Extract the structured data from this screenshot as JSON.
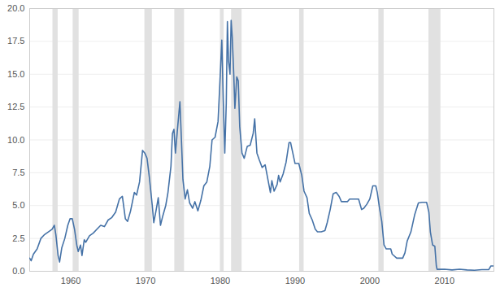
{
  "chart_data": {
    "type": "line",
    "color": "#4572a7",
    "grid": true,
    "xlim": [
      1954.5,
      2016.6
    ],
    "xticks": [
      1960,
      1970,
      1980,
      1990,
      2000,
      2010
    ],
    "ylim": [
      0,
      20
    ],
    "yticks": [
      {
        "value": 0,
        "label": "0.0"
      },
      {
        "value": 2.5,
        "label": "2.5"
      },
      {
        "value": 5,
        "label": "5.0"
      },
      {
        "value": 7.5,
        "label": "7.5"
      },
      {
        "value": 10,
        "label": "10.0"
      },
      {
        "value": 12.5,
        "label": "12.5"
      },
      {
        "value": 15,
        "label": "15.0"
      },
      {
        "value": 17.5,
        "label": "17.5"
      },
      {
        "value": 20,
        "label": "20.0"
      }
    ],
    "recessions": [
      [
        1957.6,
        1958.3
      ],
      [
        1960.3,
        1961.1
      ],
      [
        1969.9,
        1970.9
      ],
      [
        1973.9,
        1975.2
      ],
      [
        1980.0,
        1980.5
      ],
      [
        1981.5,
        1982.9
      ],
      [
        1990.6,
        1991.2
      ],
      [
        2001.2,
        2001.9
      ],
      [
        2007.9,
        2009.5
      ]
    ],
    "x": [
      1954.5,
      1954.7,
      1955.0,
      1955.5,
      1956.0,
      1956.5,
      1957.0,
      1957.5,
      1957.8,
      1958.0,
      1958.3,
      1958.5,
      1958.8,
      1959.2,
      1959.6,
      1959.9,
      1960.2,
      1960.5,
      1960.8,
      1961.0,
      1961.3,
      1961.5,
      1961.8,
      1962.0,
      1962.5,
      1963.0,
      1963.5,
      1964.0,
      1964.5,
      1965.0,
      1965.5,
      1966.0,
      1966.5,
      1966.9,
      1967.3,
      1967.6,
      1968.0,
      1968.5,
      1968.8,
      1969.2,
      1969.6,
      1969.9,
      1970.2,
      1970.5,
      1970.9,
      1971.1,
      1971.4,
      1971.7,
      1972.0,
      1972.3,
      1972.7,
      1973.0,
      1973.4,
      1973.6,
      1973.8,
      1974.0,
      1974.3,
      1974.6,
      1974.8,
      1975.0,
      1975.3,
      1975.6,
      1975.9,
      1976.3,
      1976.6,
      1977.0,
      1977.4,
      1977.8,
      1978.2,
      1978.6,
      1978.9,
      1979.3,
      1979.7,
      1979.9,
      1980.2,
      1980.4,
      1980.6,
      1980.8,
      1980.95,
      1981.1,
      1981.3,
      1981.45,
      1981.6,
      1981.8,
      1981.95,
      1982.2,
      1982.4,
      1982.6,
      1982.9,
      1983.2,
      1983.6,
      1984.0,
      1984.4,
      1984.6,
      1984.9,
      1985.2,
      1985.6,
      1986.0,
      1986.4,
      1986.7,
      1986.9,
      1987.2,
      1987.6,
      1987.8,
      1988.0,
      1988.4,
      1988.8,
      1989.2,
      1989.4,
      1989.7,
      1990.0,
      1990.5,
      1990.9,
      1991.2,
      1991.6,
      1991.9,
      1992.3,
      1992.7,
      1993.0,
      1993.5,
      1994.0,
      1994.3,
      1994.7,
      1995.1,
      1995.5,
      1995.9,
      1996.2,
      1996.6,
      1997.0,
      1997.3,
      1997.9,
      1998.5,
      1998.9,
      1999.2,
      1999.6,
      2000.0,
      2000.4,
      2000.8,
      2001.0,
      2001.3,
      2001.6,
      2001.9,
      2002.2,
      2002.8,
      2003.0,
      2003.6,
      2004.4,
      2004.7,
      2005.0,
      2005.5,
      2006.0,
      2006.5,
      2007.0,
      2007.6,
      2007.9,
      2008.1,
      2008.4,
      2008.7,
      2008.9,
      2009.0,
      2010.0,
      2011.0,
      2012.0,
      2013.0,
      2014.0,
      2015.0,
      2015.9,
      2016.2,
      2016.6
    ],
    "values": [
      1.0,
      0.8,
      1.3,
      1.7,
      2.5,
      2.8,
      3.0,
      3.2,
      3.5,
      2.8,
      1.2,
      0.7,
      1.8,
      2.5,
      3.5,
      4.0,
      4.0,
      3.2,
      2.0,
      1.5,
      2.0,
      1.2,
      2.4,
      2.2,
      2.7,
      2.9,
      3.2,
      3.5,
      3.4,
      3.9,
      4.1,
      4.5,
      5.5,
      5.7,
      4.0,
      3.8,
      4.6,
      6.0,
      5.8,
      6.8,
      9.2,
      9.0,
      8.6,
      7.2,
      5.0,
      3.7,
      4.6,
      5.6,
      3.5,
      4.2,
      5.0,
      6.0,
      8.0,
      10.5,
      10.8,
      9.0,
      11.0,
      12.9,
      10.0,
      7.0,
      5.5,
      6.2,
      5.2,
      4.8,
      5.3,
      4.6,
      5.4,
      6.5,
      6.8,
      8.0,
      10.0,
      10.2,
      11.4,
      13.8,
      17.6,
      13.0,
      9.0,
      12.8,
      19.0,
      16.0,
      15.0,
      19.1,
      17.8,
      15.0,
      12.4,
      14.8,
      14.5,
      11.0,
      9.0,
      8.6,
      9.5,
      9.6,
      10.5,
      11.6,
      9.0,
      8.5,
      7.9,
      8.1,
      6.9,
      6.0,
      6.9,
      6.1,
      6.6,
      7.3,
      6.8,
      7.4,
      8.3,
      9.8,
      9.8,
      9.0,
      8.2,
      8.2,
      7.3,
      6.1,
      5.6,
      4.4,
      3.9,
      3.2,
      3.0,
      3.0,
      3.1,
      3.7,
      4.7,
      5.9,
      6.0,
      5.7,
      5.3,
      5.3,
      5.3,
      5.5,
      5.5,
      5.5,
      4.7,
      4.8,
      5.1,
      5.5,
      6.5,
      6.5,
      6.0,
      4.8,
      3.8,
      2.0,
      1.7,
      1.7,
      1.3,
      1.0,
      1.0,
      1.4,
      2.3,
      3.0,
      4.3,
      5.2,
      5.25,
      5.25,
      4.5,
      3.0,
      2.0,
      1.9,
      0.4,
      0.15,
      0.15,
      0.1,
      0.15,
      0.1,
      0.08,
      0.12,
      0.12,
      0.4,
      0.4
    ]
  }
}
